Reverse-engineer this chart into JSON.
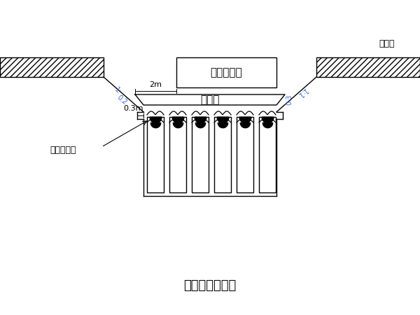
{
  "title": "基坑开挖示意图",
  "label_bridge_foundation": "框构桥基础",
  "label_sand_layer": "砂垫层",
  "label_pile": "水泥搅拌桩",
  "label_ground": "原地面",
  "label_0_3m": "0.3m",
  "label_2m": "2m",
  "label_1_02": "1:0.2",
  "label_1_1": "1:1",
  "label_0_3": "0.3",
  "bg_color": "#ffffff",
  "line_color": "#000000",
  "ann_color": "#4169E1"
}
